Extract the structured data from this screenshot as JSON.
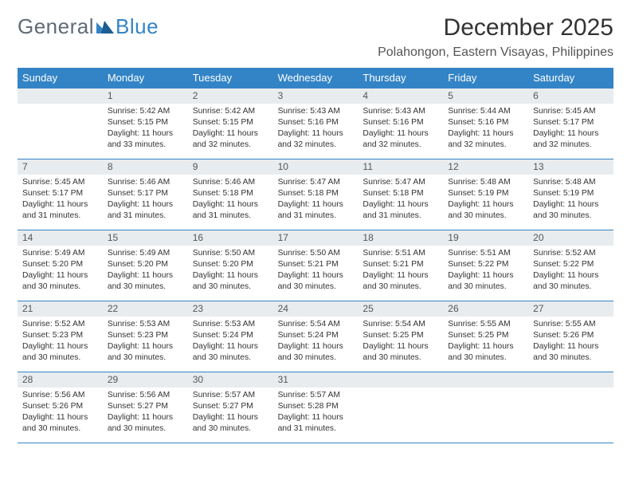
{
  "logo": {
    "part1": "General",
    "part2": "Blue"
  },
  "title": "December 2025",
  "location": "Polahongon, Eastern Visayas, Philippines",
  "colors": {
    "header_bg": "#3384c6",
    "header_text": "#ffffff",
    "daynum_bg": "#e9ecef",
    "border": "#3384c6",
    "logo_gray": "#5f6b76",
    "logo_blue": "#3384c6"
  },
  "weekdays": [
    "Sunday",
    "Monday",
    "Tuesday",
    "Wednesday",
    "Thursday",
    "Friday",
    "Saturday"
  ],
  "weeks": [
    [
      {
        "n": "",
        "sr": "",
        "ss": "",
        "dl": ""
      },
      {
        "n": "1",
        "sr": "Sunrise: 5:42 AM",
        "ss": "Sunset: 5:15 PM",
        "dl": "Daylight: 11 hours and 33 minutes."
      },
      {
        "n": "2",
        "sr": "Sunrise: 5:42 AM",
        "ss": "Sunset: 5:15 PM",
        "dl": "Daylight: 11 hours and 32 minutes."
      },
      {
        "n": "3",
        "sr": "Sunrise: 5:43 AM",
        "ss": "Sunset: 5:16 PM",
        "dl": "Daylight: 11 hours and 32 minutes."
      },
      {
        "n": "4",
        "sr": "Sunrise: 5:43 AM",
        "ss": "Sunset: 5:16 PM",
        "dl": "Daylight: 11 hours and 32 minutes."
      },
      {
        "n": "5",
        "sr": "Sunrise: 5:44 AM",
        "ss": "Sunset: 5:16 PM",
        "dl": "Daylight: 11 hours and 32 minutes."
      },
      {
        "n": "6",
        "sr": "Sunrise: 5:45 AM",
        "ss": "Sunset: 5:17 PM",
        "dl": "Daylight: 11 hours and 32 minutes."
      }
    ],
    [
      {
        "n": "7",
        "sr": "Sunrise: 5:45 AM",
        "ss": "Sunset: 5:17 PM",
        "dl": "Daylight: 11 hours and 31 minutes."
      },
      {
        "n": "8",
        "sr": "Sunrise: 5:46 AM",
        "ss": "Sunset: 5:17 PM",
        "dl": "Daylight: 11 hours and 31 minutes."
      },
      {
        "n": "9",
        "sr": "Sunrise: 5:46 AM",
        "ss": "Sunset: 5:18 PM",
        "dl": "Daylight: 11 hours and 31 minutes."
      },
      {
        "n": "10",
        "sr": "Sunrise: 5:47 AM",
        "ss": "Sunset: 5:18 PM",
        "dl": "Daylight: 11 hours and 31 minutes."
      },
      {
        "n": "11",
        "sr": "Sunrise: 5:47 AM",
        "ss": "Sunset: 5:18 PM",
        "dl": "Daylight: 11 hours and 31 minutes."
      },
      {
        "n": "12",
        "sr": "Sunrise: 5:48 AM",
        "ss": "Sunset: 5:19 PM",
        "dl": "Daylight: 11 hours and 30 minutes."
      },
      {
        "n": "13",
        "sr": "Sunrise: 5:48 AM",
        "ss": "Sunset: 5:19 PM",
        "dl": "Daylight: 11 hours and 30 minutes."
      }
    ],
    [
      {
        "n": "14",
        "sr": "Sunrise: 5:49 AM",
        "ss": "Sunset: 5:20 PM",
        "dl": "Daylight: 11 hours and 30 minutes."
      },
      {
        "n": "15",
        "sr": "Sunrise: 5:49 AM",
        "ss": "Sunset: 5:20 PM",
        "dl": "Daylight: 11 hours and 30 minutes."
      },
      {
        "n": "16",
        "sr": "Sunrise: 5:50 AM",
        "ss": "Sunset: 5:20 PM",
        "dl": "Daylight: 11 hours and 30 minutes."
      },
      {
        "n": "17",
        "sr": "Sunrise: 5:50 AM",
        "ss": "Sunset: 5:21 PM",
        "dl": "Daylight: 11 hours and 30 minutes."
      },
      {
        "n": "18",
        "sr": "Sunrise: 5:51 AM",
        "ss": "Sunset: 5:21 PM",
        "dl": "Daylight: 11 hours and 30 minutes."
      },
      {
        "n": "19",
        "sr": "Sunrise: 5:51 AM",
        "ss": "Sunset: 5:22 PM",
        "dl": "Daylight: 11 hours and 30 minutes."
      },
      {
        "n": "20",
        "sr": "Sunrise: 5:52 AM",
        "ss": "Sunset: 5:22 PM",
        "dl": "Daylight: 11 hours and 30 minutes."
      }
    ],
    [
      {
        "n": "21",
        "sr": "Sunrise: 5:52 AM",
        "ss": "Sunset: 5:23 PM",
        "dl": "Daylight: 11 hours and 30 minutes."
      },
      {
        "n": "22",
        "sr": "Sunrise: 5:53 AM",
        "ss": "Sunset: 5:23 PM",
        "dl": "Daylight: 11 hours and 30 minutes."
      },
      {
        "n": "23",
        "sr": "Sunrise: 5:53 AM",
        "ss": "Sunset: 5:24 PM",
        "dl": "Daylight: 11 hours and 30 minutes."
      },
      {
        "n": "24",
        "sr": "Sunrise: 5:54 AM",
        "ss": "Sunset: 5:24 PM",
        "dl": "Daylight: 11 hours and 30 minutes."
      },
      {
        "n": "25",
        "sr": "Sunrise: 5:54 AM",
        "ss": "Sunset: 5:25 PM",
        "dl": "Daylight: 11 hours and 30 minutes."
      },
      {
        "n": "26",
        "sr": "Sunrise: 5:55 AM",
        "ss": "Sunset: 5:25 PM",
        "dl": "Daylight: 11 hours and 30 minutes."
      },
      {
        "n": "27",
        "sr": "Sunrise: 5:55 AM",
        "ss": "Sunset: 5:26 PM",
        "dl": "Daylight: 11 hours and 30 minutes."
      }
    ],
    [
      {
        "n": "28",
        "sr": "Sunrise: 5:56 AM",
        "ss": "Sunset: 5:26 PM",
        "dl": "Daylight: 11 hours and 30 minutes."
      },
      {
        "n": "29",
        "sr": "Sunrise: 5:56 AM",
        "ss": "Sunset: 5:27 PM",
        "dl": "Daylight: 11 hours and 30 minutes."
      },
      {
        "n": "30",
        "sr": "Sunrise: 5:57 AM",
        "ss": "Sunset: 5:27 PM",
        "dl": "Daylight: 11 hours and 30 minutes."
      },
      {
        "n": "31",
        "sr": "Sunrise: 5:57 AM",
        "ss": "Sunset: 5:28 PM",
        "dl": "Daylight: 11 hours and 31 minutes."
      },
      {
        "n": "",
        "sr": "",
        "ss": "",
        "dl": ""
      },
      {
        "n": "",
        "sr": "",
        "ss": "",
        "dl": ""
      },
      {
        "n": "",
        "sr": "",
        "ss": "",
        "dl": ""
      }
    ]
  ]
}
